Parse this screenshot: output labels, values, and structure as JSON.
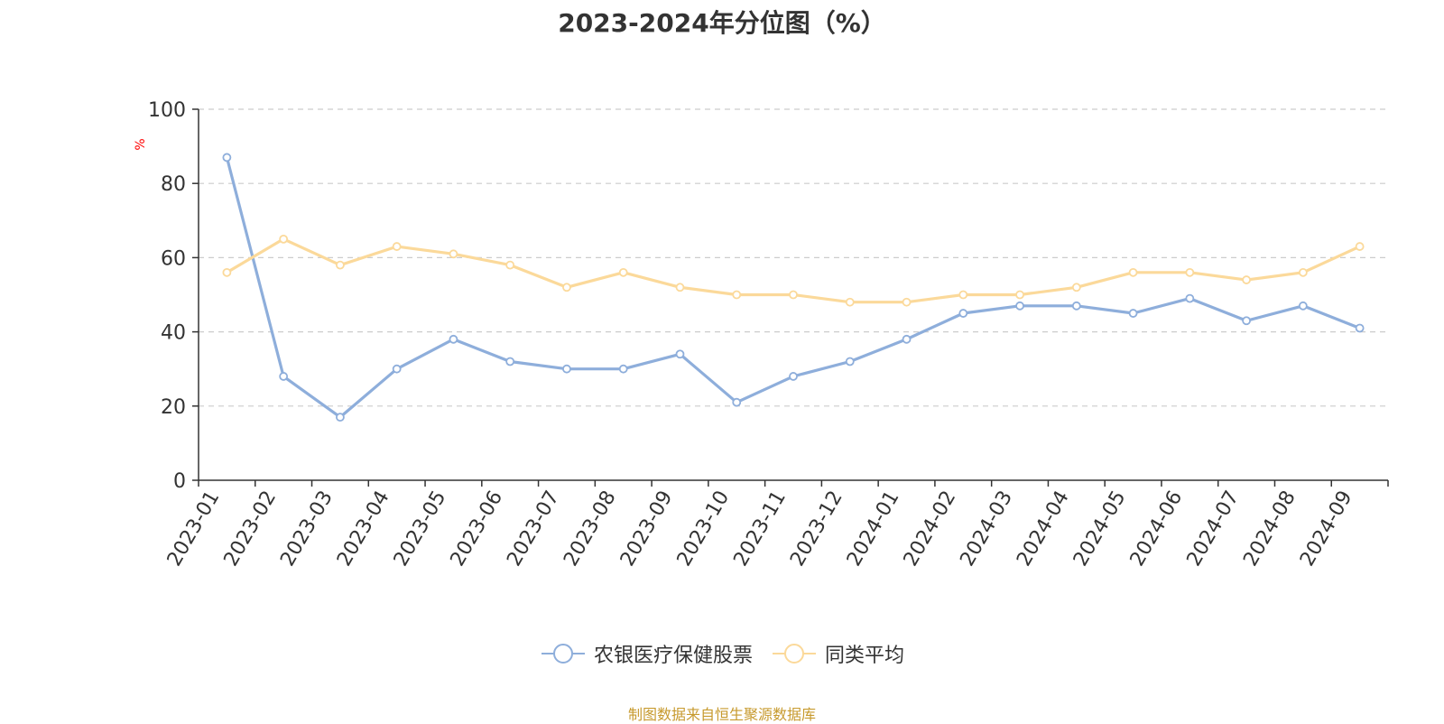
{
  "chart_data": {
    "type": "line",
    "title": "2023-2024年分位图（%）",
    "ylabel": "%",
    "xlabel": "",
    "ylim": [
      0,
      100
    ],
    "yticks": [
      0,
      20,
      40,
      60,
      80,
      100
    ],
    "grid": true,
    "legend_position": "bottom",
    "categories": [
      "2023-01",
      "2023-02",
      "2023-03",
      "2023-04",
      "2023-05",
      "2023-06",
      "2023-07",
      "2023-08",
      "2023-09",
      "2023-10",
      "2023-11",
      "2023-12",
      "2024-01",
      "2024-02",
      "2024-03",
      "2024-04",
      "2024-05",
      "2024-06",
      "2024-07",
      "2024-08",
      "2024-09"
    ],
    "series": [
      {
        "name": "农银医疗保健股票",
        "color": "#8eaedb",
        "values": [
          87,
          28,
          17,
          30,
          38,
          32,
          30,
          30,
          34,
          21,
          28,
          32,
          38,
          45,
          47,
          47,
          45,
          49,
          43,
          47,
          41
        ]
      },
      {
        "name": "同类平均",
        "color": "#fbd99a",
        "values": [
          56,
          65,
          58,
          63,
          61,
          58,
          52,
          56,
          52,
          50,
          50,
          48,
          48,
          50,
          50,
          52,
          56,
          56,
          54,
          56,
          63
        ]
      }
    ]
  },
  "source_text": "制图数据来自恒生聚源数据库",
  "colors": {
    "axis": "#333333",
    "grid": "#cccccc",
    "ylabel": "#ff0000",
    "source": "#c79a2e"
  }
}
